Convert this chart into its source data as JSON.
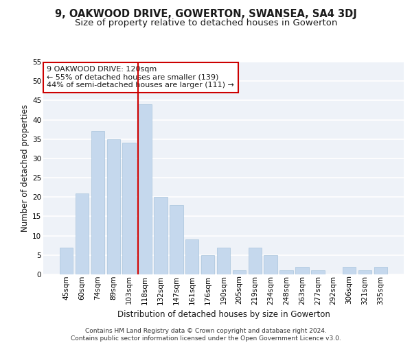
{
  "title": "9, OAKWOOD DRIVE, GOWERTON, SWANSEA, SA4 3DJ",
  "subtitle": "Size of property relative to detached houses in Gowerton",
  "xlabel": "Distribution of detached houses by size in Gowerton",
  "ylabel": "Number of detached properties",
  "categories": [
    "45sqm",
    "60sqm",
    "74sqm",
    "89sqm",
    "103sqm",
    "118sqm",
    "132sqm",
    "147sqm",
    "161sqm",
    "176sqm",
    "190sqm",
    "205sqm",
    "219sqm",
    "234sqm",
    "248sqm",
    "263sqm",
    "277sqm",
    "292sqm",
    "306sqm",
    "321sqm",
    "335sqm"
  ],
  "values": [
    7,
    21,
    37,
    35,
    34,
    44,
    20,
    18,
    9,
    5,
    7,
    1,
    7,
    5,
    1,
    2,
    1,
    0,
    2,
    1,
    2
  ],
  "bar_color": "#c5d8ed",
  "bar_edgecolor": "#a8c4dc",
  "vline_x_index": 5,
  "vline_color": "#cc0000",
  "annotation_text": "9 OAKWOOD DRIVE: 120sqm\n← 55% of detached houses are smaller (139)\n44% of semi-detached houses are larger (111) →",
  "annotation_box_facecolor": "#ffffff",
  "annotation_box_edgecolor": "#cc0000",
  "ylim": [
    0,
    55
  ],
  "yticks": [
    0,
    5,
    10,
    15,
    20,
    25,
    30,
    35,
    40,
    45,
    50,
    55
  ],
  "background_color": "#eef2f8",
  "grid_color": "#ffffff",
  "footer": "Contains HM Land Registry data © Crown copyright and database right 2024.\nContains public sector information licensed under the Open Government Licence v3.0.",
  "title_fontsize": 10.5,
  "subtitle_fontsize": 9.5,
  "xlabel_fontsize": 8.5,
  "ylabel_fontsize": 8.5,
  "tick_fontsize": 7.5,
  "annotation_fontsize": 8,
  "footer_fontsize": 6.5
}
